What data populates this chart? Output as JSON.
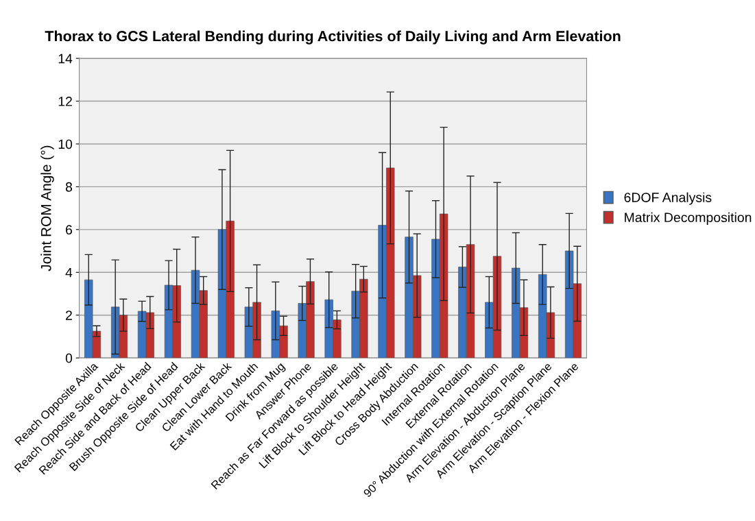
{
  "chart_data": {
    "type": "bar",
    "title": "Thorax to GCS Lateral Bending during Activities of Daily Living and Arm Elevation",
    "ylabel": "Joint ROM Angle (°)",
    "categories": [
      "Reach Opposite Axilla",
      "Reach Opposite Side of Neck",
      "Reach Side and Back of Head",
      "Brush Opposite Side of Head",
      "Clean Upper Back",
      "Clean Lower Back",
      "Eat with Hand to Mouth",
      "Drink from Mug",
      "Answer Phone",
      "Reach as Far Forward as possible",
      "Lift Block to Shoulder Height",
      "Lift Block to Head Height",
      "Cross Body Abduction",
      "Internal Rotation",
      "External Rotation",
      "90° Abduction with External Rotation",
      "Arm Elevation - Abduction Plane",
      "Arm Elevation - Scaption Plane",
      "Arm Elevation - Flexion Plane"
    ],
    "series": [
      {
        "name": "6DOF Analysis",
        "color": "#3a75c4",
        "values": [
          3.65,
          2.38,
          2.18,
          3.4,
          4.1,
          6.0,
          2.38,
          2.2,
          2.55,
          2.72,
          3.12,
          6.2,
          5.65,
          5.55,
          4.25,
          2.6,
          4.2,
          3.9,
          5.0
        ],
        "errors": [
          1.18,
          2.2,
          0.47,
          1.15,
          1.55,
          2.8,
          0.9,
          1.35,
          0.8,
          1.3,
          1.25,
          3.4,
          2.15,
          1.8,
          0.95,
          1.2,
          1.65,
          1.4,
          1.75
        ]
      },
      {
        "name": "Matrix Decomposition",
        "color": "#c0302c",
        "values": [
          1.25,
          2.0,
          2.12,
          3.38,
          3.15,
          6.4,
          2.6,
          1.5,
          3.57,
          1.78,
          3.68,
          8.88,
          3.85,
          6.73,
          5.3,
          4.75,
          2.35,
          2.12,
          3.47
        ],
        "errors": [
          0.25,
          0.75,
          0.75,
          1.7,
          0.65,
          3.3,
          1.75,
          0.45,
          1.05,
          0.42,
          0.6,
          3.55,
          1.95,
          4.05,
          3.2,
          3.45,
          1.3,
          1.2,
          1.75
        ]
      }
    ],
    "ylim": [
      0,
      14
    ],
    "yticks": [
      0,
      2,
      4,
      6,
      8,
      10,
      12,
      14
    ],
    "grid": "y",
    "legend": "right"
  }
}
